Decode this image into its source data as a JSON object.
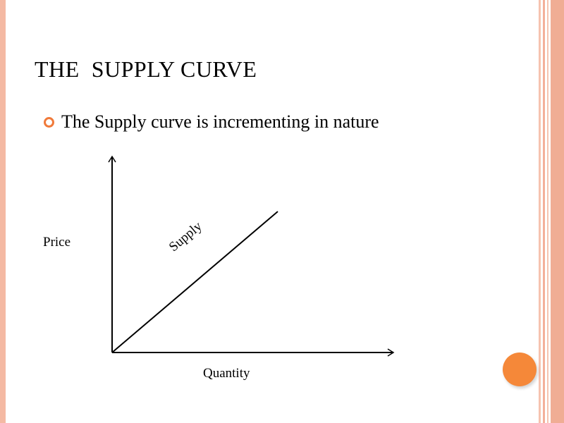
{
  "slide": {
    "title": "THE  SUPPLY CURVE",
    "bullet": "The Supply curve is incrementing in nature"
  },
  "diagram": {
    "y_axis_label": "Price",
    "x_axis_label": "Quantity",
    "curve_label": "Supply"
  },
  "colors": {
    "accent": "#f58839",
    "bullet": "#f07a3a",
    "stripe": "#f0ad94"
  }
}
